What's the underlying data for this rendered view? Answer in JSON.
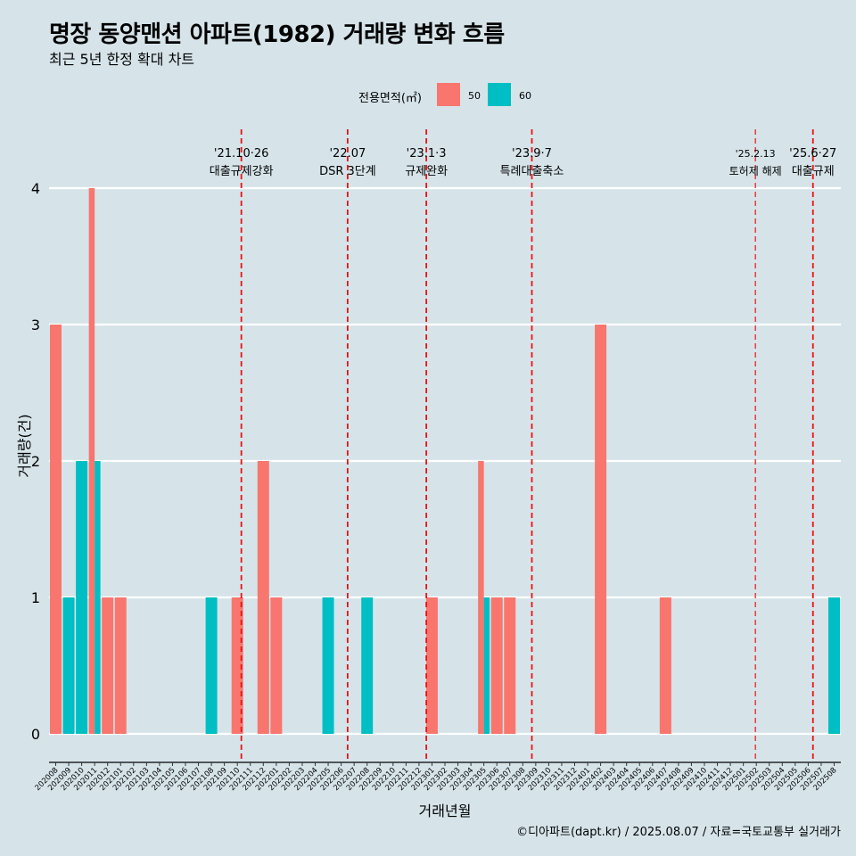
{
  "title": "명장 동양맨션 아파트(1982) 거래량 변화 흐름",
  "subtitle": "최근 5년 한정 확대 차트",
  "caption": "©디아파트(dapt.kr) / 2025.08.07 / 자료=국토교통부 실거래가",
  "legend": {
    "title": "전용면적(㎡)",
    "items": [
      {
        "label": "50",
        "color": "#f8766d"
      },
      {
        "label": "60",
        "color": "#00bfc4"
      }
    ]
  },
  "chart_data": {
    "type": "bar",
    "xlabel": "거래년월",
    "ylabel": "거래량(건)",
    "ylim": [
      0,
      4
    ],
    "yticks": [
      "0",
      "1",
      "2",
      "3",
      "4"
    ],
    "grid": true,
    "legend_position": "top",
    "categories": [
      "202008",
      "202009",
      "202010",
      "202011",
      "202012",
      "202101",
      "202102",
      "202103",
      "202104",
      "202105",
      "202106",
      "202107",
      "202108",
      "202109",
      "202110",
      "202111",
      "202112",
      "202201",
      "202202",
      "202203",
      "202204",
      "202205",
      "202206",
      "202207",
      "202208",
      "202209",
      "202210",
      "202211",
      "202212",
      "202301",
      "202302",
      "202303",
      "202304",
      "202305",
      "202306",
      "202307",
      "202308",
      "202309",
      "202310",
      "202311",
      "202312",
      "202401",
      "202402",
      "202403",
      "202404",
      "202405",
      "202406",
      "202407",
      "202408",
      "202409",
      "202410",
      "202411",
      "202412",
      "202501",
      "202502",
      "202503",
      "202504",
      "202505",
      "202506",
      "202507",
      "202508"
    ],
    "series": [
      {
        "name": "50",
        "color": "#f8766d",
        "values": [
          3,
          0,
          0,
          4,
          1,
          1,
          0,
          0,
          0,
          0,
          0,
          0,
          0,
          0,
          1,
          0,
          2,
          1,
          0,
          0,
          0,
          0,
          0,
          0,
          0,
          0,
          0,
          0,
          0,
          1,
          0,
          0,
          0,
          2,
          1,
          1,
          0,
          0,
          0,
          0,
          0,
          0,
          3,
          0,
          0,
          0,
          0,
          1,
          0,
          0,
          0,
          0,
          0,
          0,
          0,
          0,
          0,
          0,
          0,
          0,
          0
        ]
      },
      {
        "name": "60",
        "color": "#00bfc4",
        "values": [
          0,
          1,
          2,
          2,
          0,
          0,
          0,
          0,
          0,
          0,
          0,
          0,
          1,
          0,
          0,
          0,
          0,
          0,
          0,
          0,
          0,
          1,
          0,
          0,
          1,
          0,
          0,
          0,
          0,
          0,
          0,
          0,
          0,
          1,
          0,
          0,
          0,
          0,
          0,
          0,
          0,
          0,
          0,
          0,
          0,
          0,
          0,
          0,
          0,
          0,
          0,
          0,
          0,
          0,
          0,
          0,
          0,
          0,
          0,
          0,
          1
        ]
      }
    ],
    "annotations": [
      {
        "date": "2021-10-26",
        "lines": [
          "'21.10·26",
          "대출규제강화"
        ]
      },
      {
        "date": "2022-07-01",
        "lines": [
          "'22.07",
          "DSR 3단계"
        ]
      },
      {
        "date": "2023-01-03",
        "lines": [
          "'23.1·3",
          "규제완화"
        ]
      },
      {
        "date": "2023-09-07",
        "lines": [
          "'23.9·7",
          "특례대출축소"
        ]
      },
      {
        "date": "2025-02-13",
        "lines": [
          "'25.2.13",
          "토허제 해제"
        ]
      },
      {
        "date": "2025-06-27",
        "lines": [
          "'25.6·27",
          "대출규제"
        ]
      }
    ]
  }
}
